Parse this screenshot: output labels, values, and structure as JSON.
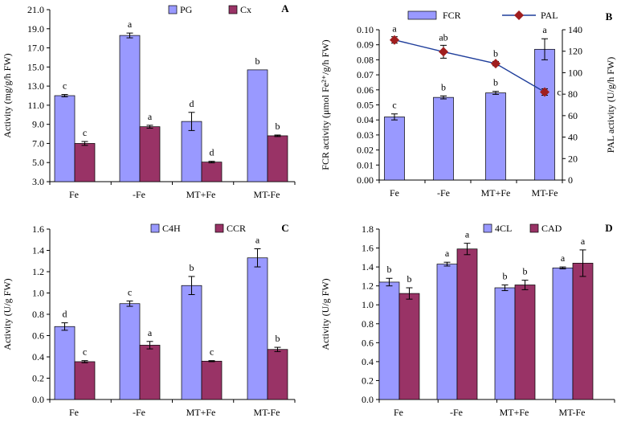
{
  "colors": {
    "blue": "#9999FF",
    "red": "#993366",
    "line": "#1F3E9B",
    "marker": "#A01E1E"
  },
  "chart_data": [
    {
      "panel": "A",
      "type": "bar",
      "categories": [
        "Fe",
        "-Fe",
        "MT+Fe",
        "MT-Fe"
      ],
      "series": [
        {
          "name": "PG",
          "color": "blue",
          "values": [
            12.0,
            18.3,
            9.3,
            14.7
          ],
          "errors": [
            0.12,
            0.25,
            0.95,
            0.0
          ],
          "letters": [
            "c",
            "a",
            "d",
            "b"
          ]
        },
        {
          "name": "Cx",
          "color": "red",
          "values": [
            7.0,
            8.75,
            5.05,
            7.8
          ],
          "errors": [
            0.2,
            0.15,
            0.08,
            0.08
          ],
          "letters": [
            "c",
            "a",
            "d",
            "b"
          ]
        }
      ],
      "ylabel": "Activity (mg/g/h FW)",
      "ylim": [
        3.0,
        21.0
      ],
      "yticks": [
        "3.0",
        "5.0",
        "7.0",
        "9.0",
        "11.0",
        "13.0",
        "15.0",
        "17.0",
        "19.0",
        "21.0"
      ],
      "legend": "top-center"
    },
    {
      "panel": "B",
      "type": "bar+line",
      "categories": [
        "Fe",
        "-Fe",
        "MT+Fe",
        "MT-Fe"
      ],
      "series": [
        {
          "name": "FCR",
          "color": "blue",
          "values": [
            0.042,
            0.055,
            0.058,
            0.087
          ],
          "errors": [
            0.002,
            0.001,
            0.001,
            0.007
          ],
          "letters": [
            "c",
            "b",
            "b",
            "a"
          ]
        }
      ],
      "line_series": {
        "name": "PAL",
        "color": "line",
        "marker_color": "marker",
        "values": [
          130.5,
          119.5,
          108.5,
          82.0
        ],
        "errors": [
          3,
          6,
          2,
          3
        ],
        "letters": [
          "a",
          "ab",
          "b",
          "c"
        ]
      },
      "ylabel": "FCR activity (μmol Fe²⁺/g/h FW)",
      "y2label": "PAL activity (U/g/h FW)",
      "ylim": [
        0,
        0.1
      ],
      "yticks": [
        "0.00",
        "0.01",
        "0.02",
        "0.03",
        "0.04",
        "0.05",
        "0.06",
        "0.07",
        "0.08",
        "0.09",
        "0.10"
      ],
      "y2lim": [
        0,
        140
      ],
      "y2ticks": [
        "0",
        "20",
        "40",
        "60",
        "80",
        "100",
        "120",
        "140"
      ],
      "legend": "top-center"
    },
    {
      "panel": "C",
      "type": "bar",
      "categories": [
        "Fe",
        "-Fe",
        "MT+Fe",
        "MT-Fe"
      ],
      "series": [
        {
          "name": "C4H",
          "color": "blue",
          "values": [
            0.685,
            0.9,
            1.07,
            1.33
          ],
          "errors": [
            0.035,
            0.025,
            0.085,
            0.085
          ],
          "letters": [
            "d",
            "c",
            "b",
            "a"
          ]
        },
        {
          "name": "CCR",
          "color": "red",
          "values": [
            0.355,
            0.51,
            0.36,
            0.47
          ],
          "errors": [
            0.01,
            0.035,
            0.005,
            0.02
          ],
          "letters": [
            "c",
            "a",
            "c",
            "b"
          ]
        }
      ],
      "ylabel": "Activity (U/g FW)",
      "ylim": [
        0,
        1.6
      ],
      "yticks": [
        "0.0",
        "0.2",
        "0.4",
        "0.6",
        "0.8",
        "1.0",
        "1.2",
        "1.4",
        "1.6"
      ],
      "legend": "top-center"
    },
    {
      "panel": "D",
      "type": "bar",
      "categories": [
        "Fe",
        "-Fe",
        "MT+Fe",
        "MT-Fe"
      ],
      "series": [
        {
          "name": "4CL",
          "color": "blue",
          "values": [
            1.24,
            1.43,
            1.18,
            1.39
          ],
          "errors": [
            0.04,
            0.02,
            0.03,
            0.01
          ],
          "letters": [
            "b",
            "a",
            "b",
            "a"
          ]
        },
        {
          "name": "CAD",
          "color": "red",
          "values": [
            1.12,
            1.59,
            1.21,
            1.44
          ],
          "errors": [
            0.06,
            0.06,
            0.05,
            0.14
          ],
          "letters": [
            "b",
            "a",
            "b",
            "a"
          ]
        }
      ],
      "ylabel": "Activity (U/g FW)",
      "ylim": [
        0,
        1.8
      ],
      "yticks": [
        "0.0",
        "0.2",
        "0.4",
        "0.6",
        "0.8",
        "1.0",
        "1.2",
        "1.4",
        "1.6",
        "1.8"
      ],
      "legend": "top-center"
    }
  ]
}
